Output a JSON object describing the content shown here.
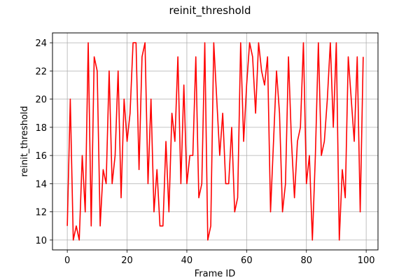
{
  "chart_data": {
    "type": "line",
    "title": "reinit_threshold",
    "xlabel": "Frame ID",
    "ylabel": "reinit_threshold",
    "xlim": [
      -4.95,
      103.95
    ],
    "ylim": [
      9.3,
      24.7
    ],
    "xticks": [
      0,
      20,
      40,
      60,
      80,
      100
    ],
    "yticks": [
      10,
      12,
      14,
      16,
      18,
      20,
      22,
      24
    ],
    "xtick_labels": [
      "0",
      "20",
      "40",
      "60",
      "80",
      "100"
    ],
    "ytick_labels": [
      "10",
      "12",
      "14",
      "16",
      "18",
      "20",
      "22",
      "24"
    ],
    "grid": true,
    "legend": false,
    "series": [
      {
        "color": "#ff0000",
        "x": [
          0,
          1,
          2,
          3,
          4,
          5,
          6,
          7,
          8,
          9,
          10,
          11,
          12,
          13,
          14,
          15,
          16,
          17,
          18,
          19,
          20,
          21,
          22,
          23,
          24,
          25,
          26,
          27,
          28,
          29,
          30,
          31,
          32,
          33,
          34,
          35,
          36,
          37,
          38,
          39,
          40,
          41,
          42,
          43,
          44,
          45,
          46,
          47,
          48,
          49,
          50,
          51,
          52,
          53,
          54,
          55,
          56,
          57,
          58,
          59,
          60,
          61,
          62,
          63,
          64,
          65,
          66,
          67,
          68,
          69,
          70,
          71,
          72,
          73,
          74,
          75,
          76,
          77,
          78,
          79,
          80,
          81,
          82,
          83,
          84,
          85,
          86,
          87,
          88,
          89,
          90,
          91,
          92,
          93,
          94,
          95,
          96,
          97,
          98,
          99
        ],
        "y": [
          11,
          20,
          10,
          11,
          10,
          16,
          12,
          24,
          11,
          23,
          22,
          11,
          15,
          14,
          22,
          14,
          16,
          22,
          13,
          20,
          17,
          19,
          24,
          24,
          15,
          23,
          24,
          14,
          20,
          12,
          15,
          11,
          11,
          17,
          12,
          19,
          17,
          23,
          14,
          21,
          14,
          16,
          16,
          23,
          13,
          14,
          24,
          10,
          11,
          24,
          20,
          16,
          19,
          14,
          14,
          18,
          12,
          13,
          24,
          17,
          21,
          24,
          23,
          19,
          24,
          22,
          21,
          23,
          12,
          17,
          22,
          19,
          12,
          14,
          23,
          17,
          13,
          17,
          18,
          24,
          14,
          16,
          10,
          16,
          24,
          16,
          17,
          20,
          24,
          18,
          24,
          10,
          15,
          13,
          23,
          20,
          17,
          23,
          12,
          23
        ]
      }
    ]
  }
}
